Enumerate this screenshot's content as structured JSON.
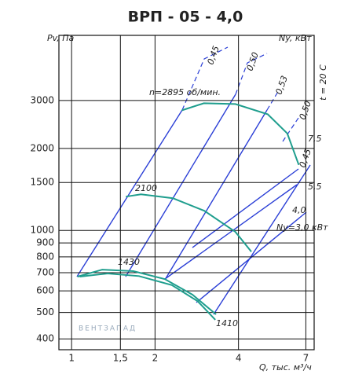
{
  "chart_data": {
    "type": "line",
    "title": "ВРП - 05 - 4,0",
    "y_label": "Pv, Па",
    "y2_label": "Ny, кВт",
    "temperature_label": "t = 20 С",
    "x_label": "Q, тыс. м³/ч",
    "watermark": "ВЕНТЗАПАД",
    "log_x": true,
    "log_y": true,
    "grid": true,
    "xlim": [
      0.9,
      7.5
    ],
    "ylim": [
      365,
      5200
    ],
    "xticks": [
      1,
      {
        "value": 1.5,
        "label": "1,5"
      },
      2,
      4,
      7
    ],
    "yticks": [
      400,
      500,
      600,
      700,
      800,
      900,
      1000,
      1500,
      2000,
      3000
    ],
    "series": [
      {
        "name": "n=2895 об/мин.",
        "color": "#1f9e8e",
        "x": [
          2.5,
          3,
          3.9,
          5.1,
          6,
          6.6
        ],
        "values": [
          2760,
          2930,
          2910,
          2670,
          2270,
          1740
        ]
      },
      {
        "name": "2100",
        "color": "#1f9e8e",
        "x": [
          1.57,
          1.78,
          2.32,
          3.01,
          3.9,
          4.45
        ],
        "values": [
          1331,
          1357,
          1313,
          1181,
          988,
          836
        ]
      },
      {
        "name": "1430",
        "color": "#1f9e8e",
        "x": [
          1.05,
          1.29,
          1.67,
          2.17,
          2.73,
          3.32
        ],
        "values": [
          677,
          718,
          709,
          663,
          581,
          492
        ]
      },
      {
        "name": "1410",
        "color": "#1f9e8e",
        "x": [
          1.07,
          1.35,
          1.75,
          2.3,
          2.85,
          3.3
        ],
        "values": [
          677,
          695,
          680,
          630,
          550,
          470
        ]
      }
    ],
    "annotations": [
      "0,45",
      "0,50",
      "0,53",
      "0,50",
      "0,45",
      "7,5",
      "5,5",
      "4,0",
      "Ny=3,0 кВт"
    ]
  }
}
